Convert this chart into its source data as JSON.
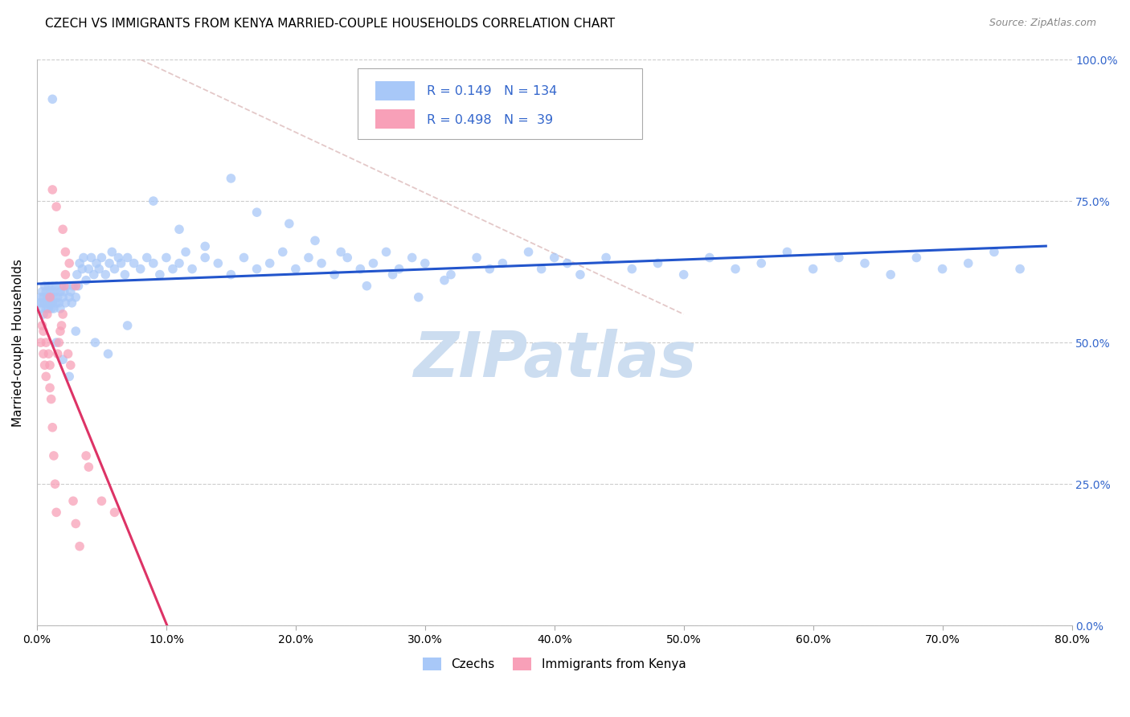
{
  "title": "CZECH VS IMMIGRANTS FROM KENYA MARRIED-COUPLE HOUSEHOLDS CORRELATION CHART",
  "source": "Source: ZipAtlas.com",
  "ylabel_label": "Married-couple Households",
  "legend_label1": "Czechs",
  "legend_label2": "Immigrants from Kenya",
  "R1": 0.149,
  "N1": 134,
  "R2": 0.498,
  "N2": 39,
  "color1": "#a8c8f8",
  "color2": "#f8a0b8",
  "line_color1": "#2255cc",
  "line_color2": "#dd3366",
  "ref_line_color": "#ddbbbb",
  "watermark_color": "#ccddf0",
  "title_fontsize": 11,
  "axis_label_fontsize": 11,
  "tick_fontsize": 10,
  "right_tick_color": "#3366cc",
  "source_color": "#888888",
  "xmin": 0.0,
  "xmax": 0.8,
  "ymin": 0.0,
  "ymax": 1.0,
  "czechs_x": [
    0.002,
    0.003,
    0.003,
    0.004,
    0.004,
    0.005,
    0.005,
    0.006,
    0.006,
    0.007,
    0.007,
    0.008,
    0.008,
    0.009,
    0.009,
    0.01,
    0.01,
    0.011,
    0.011,
    0.012,
    0.012,
    0.013,
    0.013,
    0.014,
    0.015,
    0.015,
    0.016,
    0.017,
    0.018,
    0.018,
    0.019,
    0.02,
    0.021,
    0.022,
    0.023,
    0.025,
    0.026,
    0.027,
    0.028,
    0.03,
    0.031,
    0.032,
    0.033,
    0.035,
    0.036,
    0.038,
    0.04,
    0.042,
    0.044,
    0.046,
    0.048,
    0.05,
    0.053,
    0.056,
    0.058,
    0.06,
    0.063,
    0.065,
    0.068,
    0.07,
    0.075,
    0.08,
    0.085,
    0.09,
    0.095,
    0.1,
    0.105,
    0.11,
    0.115,
    0.12,
    0.13,
    0.14,
    0.15,
    0.16,
    0.17,
    0.18,
    0.19,
    0.2,
    0.21,
    0.22,
    0.23,
    0.24,
    0.25,
    0.26,
    0.27,
    0.28,
    0.29,
    0.3,
    0.32,
    0.34,
    0.35,
    0.36,
    0.38,
    0.39,
    0.4,
    0.41,
    0.42,
    0.44,
    0.46,
    0.48,
    0.5,
    0.52,
    0.54,
    0.56,
    0.58,
    0.6,
    0.62,
    0.64,
    0.66,
    0.68,
    0.7,
    0.72,
    0.74,
    0.76,
    0.012,
    0.015,
    0.02,
    0.025,
    0.03,
    0.045,
    0.055,
    0.07,
    0.09,
    0.11,
    0.13,
    0.15,
    0.17,
    0.195,
    0.215,
    0.235,
    0.255,
    0.275,
    0.295,
    0.315
  ],
  "czechs_y": [
    0.57,
    0.58,
    0.56,
    0.57,
    0.59,
    0.55,
    0.58,
    0.57,
    0.6,
    0.56,
    0.59,
    0.58,
    0.57,
    0.56,
    0.6,
    0.57,
    0.58,
    0.56,
    0.59,
    0.57,
    0.6,
    0.58,
    0.56,
    0.59,
    0.57,
    0.6,
    0.58,
    0.57,
    0.59,
    0.56,
    0.6,
    0.58,
    0.59,
    0.57,
    0.6,
    0.58,
    0.59,
    0.57,
    0.6,
    0.58,
    0.62,
    0.6,
    0.64,
    0.63,
    0.65,
    0.61,
    0.63,
    0.65,
    0.62,
    0.64,
    0.63,
    0.65,
    0.62,
    0.64,
    0.66,
    0.63,
    0.65,
    0.64,
    0.62,
    0.65,
    0.64,
    0.63,
    0.65,
    0.64,
    0.62,
    0.65,
    0.63,
    0.64,
    0.66,
    0.63,
    0.65,
    0.64,
    0.62,
    0.65,
    0.63,
    0.64,
    0.66,
    0.63,
    0.65,
    0.64,
    0.62,
    0.65,
    0.63,
    0.64,
    0.66,
    0.63,
    0.65,
    0.64,
    0.62,
    0.65,
    0.63,
    0.64,
    0.66,
    0.63,
    0.65,
    0.64,
    0.62,
    0.65,
    0.63,
    0.64,
    0.62,
    0.65,
    0.63,
    0.64,
    0.66,
    0.63,
    0.65,
    0.64,
    0.62,
    0.65,
    0.63,
    0.64,
    0.66,
    0.63,
    0.93,
    0.5,
    0.47,
    0.44,
    0.52,
    0.5,
    0.48,
    0.53,
    0.75,
    0.7,
    0.67,
    0.79,
    0.73,
    0.71,
    0.68,
    0.66,
    0.6,
    0.62,
    0.58,
    0.61
  ],
  "kenya_x": [
    0.003,
    0.004,
    0.005,
    0.005,
    0.006,
    0.007,
    0.007,
    0.008,
    0.009,
    0.01,
    0.01,
    0.011,
    0.012,
    0.013,
    0.014,
    0.015,
    0.016,
    0.017,
    0.018,
    0.019,
    0.02,
    0.021,
    0.022,
    0.022,
    0.024,
    0.026,
    0.028,
    0.03,
    0.033,
    0.038,
    0.04,
    0.05,
    0.06,
    0.015,
    0.012,
    0.02,
    0.025,
    0.03,
    0.01
  ],
  "kenya_y": [
    0.5,
    0.53,
    0.48,
    0.52,
    0.46,
    0.5,
    0.44,
    0.55,
    0.48,
    0.46,
    0.42,
    0.4,
    0.35,
    0.3,
    0.25,
    0.2,
    0.48,
    0.5,
    0.52,
    0.53,
    0.55,
    0.6,
    0.62,
    0.66,
    0.48,
    0.46,
    0.22,
    0.18,
    0.14,
    0.3,
    0.28,
    0.22,
    0.2,
    0.74,
    0.77,
    0.7,
    0.64,
    0.6,
    0.58
  ],
  "x_tick_vals": [
    0.0,
    0.1,
    0.2,
    0.3,
    0.4,
    0.5,
    0.6,
    0.7,
    0.8
  ],
  "x_tick_labels": [
    "0.0%",
    "10.0%",
    "20.0%",
    "30.0%",
    "40.0%",
    "50.0%",
    "60.0%",
    "70.0%",
    "80.0%"
  ],
  "y_tick_vals": [
    0.0,
    0.25,
    0.5,
    0.75,
    1.0
  ],
  "y_tick_labels": [
    "0.0%",
    "25.0%",
    "50.0%",
    "75.0%",
    "100.0%"
  ]
}
